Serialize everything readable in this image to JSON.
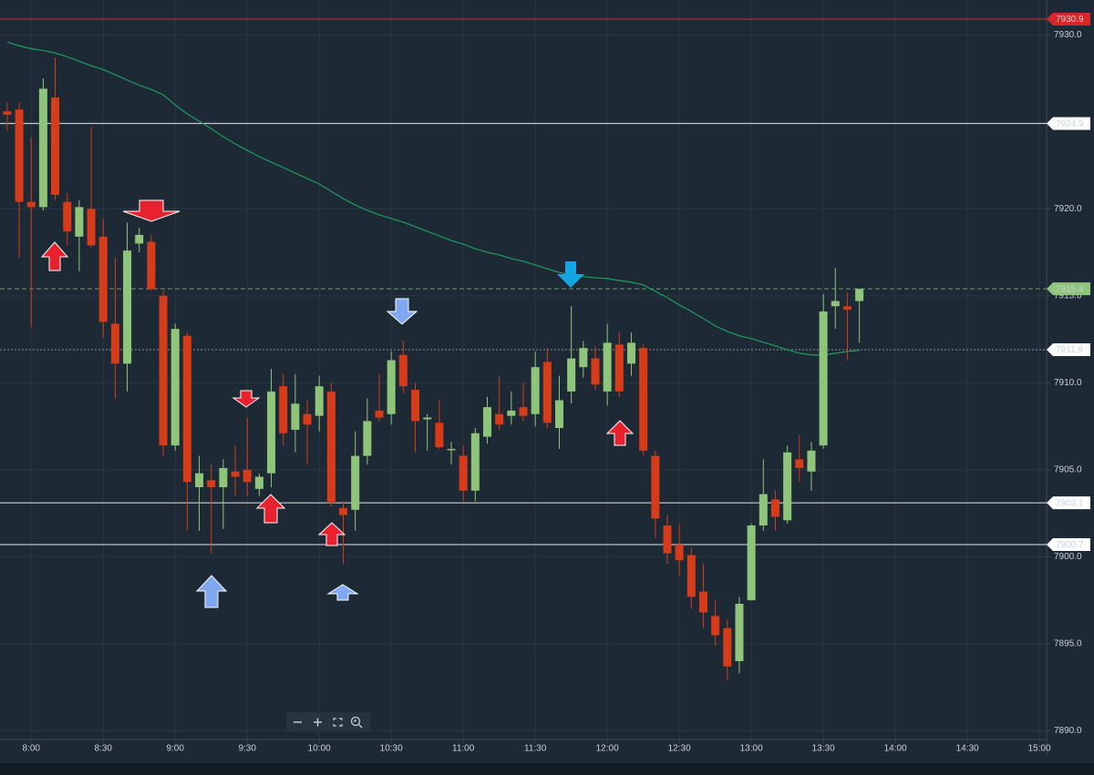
{
  "chart_data": {
    "type": "candlestick",
    "x": [
      470,
      475,
      480,
      485,
      490,
      495,
      500,
      505,
      510,
      515,
      520,
      525,
      530,
      535,
      540,
      545,
      550,
      555,
      560,
      565,
      570,
      575,
      580,
      585,
      590,
      595,
      600,
      605,
      610,
      615,
      620,
      625,
      630,
      635,
      640,
      645,
      650,
      655,
      660,
      665,
      670,
      675,
      680,
      685,
      690,
      695,
      700,
      705,
      710,
      715,
      720,
      725,
      730,
      735,
      740,
      745,
      750,
      755,
      760,
      765,
      770,
      775,
      780,
      785,
      790,
      795,
      800,
      805,
      810,
      815,
      820,
      825
    ],
    "open": [
      7925.6,
      7925.7,
      7920.4,
      7920.1,
      7926.4,
      7920.4,
      7918.4,
      7920.0,
      7918.4,
      7913.4,
      7911.1,
      7918.0,
      7918.1,
      7915.0,
      7906.4,
      7912.7,
      7904.0,
      7904.4,
      7904.0,
      7904.9,
      7905.0,
      7903.9,
      7904.8,
      7909.8,
      7907.3,
      7908.2,
      7908.1,
      7909.5,
      7902.8,
      7902.7,
      7905.8,
      7908.4,
      7908.2,
      7911.6,
      7909.6,
      7907.9,
      7907.7,
      7906.2,
      7905.8,
      7903.8,
      7906.9,
      7908.2,
      7908.1,
      7908.6,
      7908.2,
      7911.2,
      7907.4,
      7909.5,
      7910.9,
      7911.4,
      7909.5,
      7912.2,
      7911.1,
      7912.0,
      7905.8,
      7901.8,
      7900.7,
      7900.1,
      7898.0,
      7896.6,
      7895.9,
      7894.0,
      7897.5,
      7901.8,
      7903.3,
      7902.1,
      7905.6,
      7904.9,
      7906.4,
      7914.4,
      7914.4,
      7914.7
    ],
    "high": [
      7926.1,
      7926.1,
      7924.1,
      7927.5,
      7928.7,
      7920.9,
      7920.5,
      7924.7,
      7919.4,
      7917.2,
      7919.2,
      7918.9,
      7918.5,
      7915.3,
      7913.4,
      7912.9,
      7905.8,
      7905.3,
      7905.6,
      7906.4,
      7908.0,
      7904.8,
      7910.8,
      7910.5,
      7910.5,
      7909.0,
      7910.4,
      7910.0,
      7903.2,
      7907.2,
      7909.1,
      7910.5,
      7911.8,
      7912.4,
      7910.0,
      7908.2,
      7909.0,
      7906.6,
      7906.4,
      7907.4,
      7909.2,
      7910.4,
      7909.5,
      7910.0,
      7911.8,
      7912.0,
      7910.4,
      7914.4,
      7912.4,
      7912.1,
      7913.4,
      7912.9,
      7912.9,
      7912.2,
      7906.1,
      7902.4,
      7901.9,
      7900.5,
      7899.6,
      7897.5,
      7896.4,
      7897.7,
      7901.9,
      7905.6,
      7903.8,
      7906.4,
      7907.0,
      7906.6,
      7915.1,
      7916.6,
      7915.2,
      7915.4
    ],
    "low": [
      7924.5,
      7917.2,
      7913.2,
      7919.9,
      7920.5,
      7917.9,
      7916.4,
      7917.8,
      7912.6,
      7909.1,
      7909.5,
      7917.5,
      7915.3,
      7905.8,
      7906.1,
      7901.5,
      7901.5,
      7900.2,
      7901.6,
      7903.5,
      7903.5,
      7903.5,
      7904.0,
      7906.4,
      7906.0,
      7905.3,
      7907.2,
      7902.9,
      7899.6,
      7901.5,
      7905.3,
      7907.8,
      7907.6,
      7909.4,
      7906.0,
      7906.1,
      7906.2,
      7905.3,
      7903.2,
      7903.2,
      7906.5,
      7907.3,
      7907.6,
      7907.8,
      7907.5,
      7907.4,
      7906.2,
      7908.8,
      7910.3,
      7909.6,
      7908.7,
      7909.2,
      7910.4,
      7905.8,
      7901.1,
      7899.6,
      7898.9,
      7897.0,
      7895.9,
      7894.9,
      7892.9,
      7893.3,
      7897.5,
      7901.5,
      7901.5,
      7901.9,
      7904.3,
      7903.8,
      7906.2,
      7913.1,
      7911.3,
      7912.3
    ],
    "close": [
      7925.4,
      7920.4,
      7920.1,
      7926.9,
      7920.8,
      7918.7,
      7920.1,
      7917.9,
      7913.5,
      7911.1,
      7917.6,
      7918.5,
      7915.4,
      7906.4,
      7913.1,
      7904.3,
      7904.8,
      7904.0,
      7905.1,
      7904.6,
      7904.3,
      7904.6,
      7909.5,
      7907.1,
      7908.8,
      7907.6,
      7909.8,
      7903.1,
      7902.4,
      7905.8,
      7907.8,
      7908.0,
      7911.3,
      7909.8,
      7907.8,
      7908.0,
      7906.3,
      7906.2,
      7903.8,
      7907.1,
      7908.6,
      7907.6,
      7908.4,
      7908.1,
      7910.9,
      7907.7,
      7909.0,
      7911.4,
      7912.0,
      7909.9,
      7912.3,
      7909.5,
      7912.3,
      7906.1,
      7902.2,
      7900.2,
      7899.8,
      7897.7,
      7896.8,
      7895.5,
      7893.7,
      7897.3,
      7901.8,
      7903.6,
      7902.3,
      7906.0,
      7905.1,
      7906.1,
      7914.1,
      7914.7,
      7914.2,
      7915.4
    ],
    "up_color": "#8fc57a",
    "down_color": "#d63b1a",
    "lines": [
      {
        "color": "#1f9e5c",
        "values": [
          7929.58,
          7929.37,
          7929.2,
          7929.1,
          7928.95,
          7928.74,
          7928.48,
          7928.22,
          7928.0,
          7927.7,
          7927.4,
          7927.1,
          7926.86,
          7926.55,
          7925.97,
          7925.45,
          7925.03,
          7924.6,
          7924.14,
          7923.73,
          7923.36,
          7922.99,
          7922.68,
          7922.37,
          7922.05,
          7921.74,
          7921.42,
          7921.0,
          7920.58,
          7920.22,
          7919.91,
          7919.65,
          7919.44,
          7919.23,
          7918.97,
          7918.7,
          7918.44,
          7918.18,
          7917.97,
          7917.7,
          7917.5,
          7917.35,
          7917.14,
          7916.98,
          7916.77,
          7916.55,
          7916.34,
          7916.2,
          7916.1,
          7916.04,
          7915.99,
          7915.88,
          7915.78,
          7915.62,
          7915.26,
          7914.9,
          7914.47,
          7914.1,
          7913.7,
          7913.27,
          7912.95,
          7912.7,
          7912.54,
          7912.33,
          7912.12,
          7911.9,
          7911.7,
          7911.6,
          7911.6,
          7911.7,
          7911.8,
          7911.86
        ]
      }
    ],
    "levels": [
      {
        "value": 7930.9,
        "color": "#d9262b",
        "style": "solid",
        "tag_color": "#d9262b",
        "tag_text": "#ffffff"
      },
      {
        "value": 7924.9,
        "color": "#e6e6e6",
        "style": "solid",
        "tag_color": "#ffffff",
        "tag_text": "#111111"
      },
      {
        "value": 7915.4,
        "color": "#6f9a6a",
        "style": "dashed",
        "tag_color": "#8fc57a",
        "tag_text": "#111111"
      },
      {
        "value": 7911.9,
        "color": "#8a94a0",
        "style": "dotted",
        "tag_color": "#ffffff",
        "tag_text": "#111111"
      },
      {
        "value": 7903.1,
        "color": "#e6e6e6",
        "style": "solid",
        "tag_color": "#ffffff",
        "tag_text": "#111111"
      },
      {
        "value": 7900.7,
        "color": "#e6e6e6",
        "style": "solid",
        "tag_color": "#ffffff",
        "tag_text": "#111111"
      }
    ],
    "xlim": [
      467,
      903
    ],
    "xticks": [
      {
        "value": 480,
        "label": "8:00"
      },
      {
        "value": 510,
        "label": "8:30"
      },
      {
        "value": 540,
        "label": "9:00"
      },
      {
        "value": 570,
        "label": "9:30"
      },
      {
        "value": 600,
        "label": "10:00"
      },
      {
        "value": 630,
        "label": "10:30"
      },
      {
        "value": 660,
        "label": "11:00"
      },
      {
        "value": 690,
        "label": "11:30"
      },
      {
        "value": 720,
        "label": "12:00"
      },
      {
        "value": 750,
        "label": "12:30"
      },
      {
        "value": 780,
        "label": "13:00"
      },
      {
        "value": 810,
        "label": "13:30"
      },
      {
        "value": 840,
        "label": "14:00"
      },
      {
        "value": 870,
        "label": "14:30"
      },
      {
        "value": 900,
        "label": "15:00"
      }
    ],
    "ylim": [
      7889.5,
      7932
    ],
    "yticks": [
      {
        "value": 7890,
        "label": "7890.0"
      },
      {
        "value": 7895,
        "label": "7895.0"
      },
      {
        "value": 7900,
        "label": "7900.0"
      },
      {
        "value": 7905,
        "label": "7905.0"
      },
      {
        "value": 7910,
        "label": "7910.0"
      },
      {
        "value": 7915,
        "label": "7915.0"
      },
      {
        "value": 7920,
        "label": "7920.0"
      },
      {
        "value": 7925,
        "label": "7925.0"
      },
      {
        "value": 7930,
        "label": "7930.0"
      }
    ],
    "grid": true
  }
}
